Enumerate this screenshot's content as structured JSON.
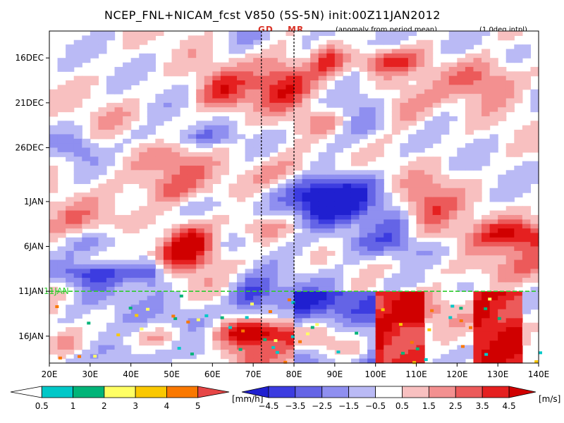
{
  "title": "NCEP_FNL+NICAM_fcst V850 (5S-5N) init:00Z11JAN2012",
  "notes": {
    "anomaly": "(anomaly from period mean)",
    "interp": "(1.0deg intpl)"
  },
  "markers": [
    {
      "label": "GD",
      "lon": 72
    },
    {
      "label": "MR",
      "lon": 80
    }
  ],
  "init_line_label": "11JAN",
  "chart_data": {
    "type": "heatmap",
    "title": "NCEP_FNL+NICAM_fcst V850 (5S-5N) init:00Z11JAN2012",
    "xlabel": "",
    "ylabel": "",
    "x_tick_labels": [
      "20E",
      "30E",
      "40E",
      "50E",
      "60E",
      "70E",
      "80E",
      "90E",
      "100E",
      "110E",
      "120E",
      "130E",
      "140E"
    ],
    "x_range": [
      20,
      140
    ],
    "y_tick_labels": [
      "16DEC",
      "21DEC",
      "26DEC",
      "1JAN",
      "6JAN",
      "11JAN",
      "16JAN"
    ],
    "y_range_days": [
      -29,
      8
    ],
    "y_ticks_days_from_init": [
      -26,
      -21,
      -16,
      -10,
      -5,
      0,
      5
    ],
    "init_day": 0,
    "reference_lines_lon": [
      72,
      80
    ],
    "fields": [
      {
        "name": "V850 anomaly",
        "unit": "[m/s]",
        "levels": [
          "-4.5",
          "-3.5",
          "-2.5",
          "-1.5",
          "-0.5",
          "0.5",
          "1.5",
          "2.5",
          "3.5",
          "4.5"
        ],
        "colors": [
          "#2020d0",
          "#3c3ce0",
          "#6464e6",
          "#8f8ff0",
          "#babaf5",
          "#ffffff",
          "#f8c0c0",
          "#f39090",
          "#ec5a5a",
          "#e52020",
          "#d00000"
        ]
      },
      {
        "name": "precipitation",
        "unit": "[mm/h]",
        "levels": [
          "0.5",
          "1",
          "2",
          "3",
          "4",
          "5"
        ],
        "colors": [
          "#ffffff",
          "#00c8c8",
          "#00b478",
          "#ffff64",
          "#fac800",
          "#fa7800",
          "#e64646"
        ]
      }
    ]
  },
  "colorbars": {
    "precip": {
      "labels": [
        "0.5",
        "1",
        "2",
        "3",
        "4",
        "5"
      ],
      "unit": "[mm/h]",
      "colors": [
        "#ffffff",
        "#00c8c8",
        "#00b478",
        "#ffff64",
        "#fac800",
        "#fa7800",
        "#e64646"
      ]
    },
    "wind": {
      "labels": [
        "−4.5",
        "−3.5",
        "−2.5",
        "−1.5",
        "−0.5",
        "0.5",
        "1.5",
        "2.5",
        "3.5",
        "4.5"
      ],
      "unit": "[m/s]",
      "colors": [
        "#2020d0",
        "#3c3ce0",
        "#6464e6",
        "#8f8ff0",
        "#babaf5",
        "#ffffff",
        "#f8c0c0",
        "#f39090",
        "#ec5a5a",
        "#e52020",
        "#d00000"
      ]
    }
  }
}
